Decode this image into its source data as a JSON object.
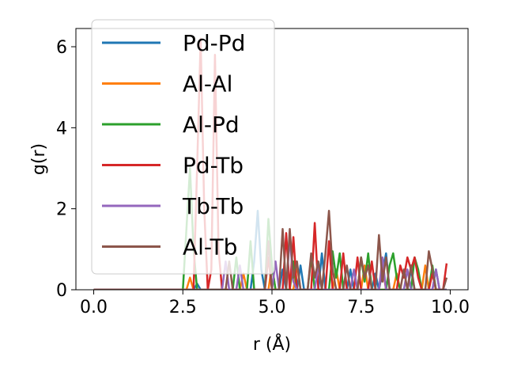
{
  "chart_data": {
    "type": "line",
    "title": "",
    "xlabel": "r (Å)",
    "ylabel": "g(r)",
    "xlim": [
      -0.5,
      10.5
    ],
    "ylim": [
      0,
      6.45
    ],
    "xticks": [
      0.0,
      2.5,
      5.0,
      7.5,
      10.0
    ],
    "xtick_labels": [
      "0.0",
      "2.5",
      "5.0",
      "7.5",
      "10.0"
    ],
    "yticks": [
      0,
      2,
      4,
      6
    ],
    "ytick_labels": [
      "0",
      "2",
      "4",
      "6"
    ],
    "grid": false,
    "legend_location": "upper-left",
    "series": [
      {
        "name": "Pd-Pd",
        "color": "#1f77b4",
        "points": [
          [
            0,
            0
          ],
          [
            2.5,
            0
          ],
          [
            2.8,
            0
          ],
          [
            2.9,
            0.15
          ],
          [
            3.0,
            0
          ],
          [
            4.4,
            0
          ],
          [
            4.5,
            0.7
          ],
          [
            4.6,
            1.95
          ],
          [
            4.7,
            0.5
          ],
          [
            4.8,
            0
          ],
          [
            5.2,
            0
          ],
          [
            5.3,
            0.5
          ],
          [
            5.4,
            0
          ],
          [
            5.7,
            0
          ],
          [
            5.8,
            0.6
          ],
          [
            5.9,
            0
          ],
          [
            6.3,
            0
          ],
          [
            6.4,
            0.9
          ],
          [
            6.5,
            0
          ],
          [
            7.1,
            0
          ],
          [
            7.2,
            0.5
          ],
          [
            7.3,
            0
          ],
          [
            7.8,
            0
          ],
          [
            7.9,
            0.4
          ],
          [
            8.0,
            0
          ],
          [
            8.2,
            0.9
          ],
          [
            8.3,
            0
          ],
          [
            8.8,
            0
          ],
          [
            8.9,
            0.5
          ],
          [
            9.0,
            0
          ],
          [
            9.5,
            0
          ],
          [
            9.6,
            0.5
          ],
          [
            9.7,
            0
          ],
          [
            9.9,
            0
          ]
        ]
      },
      {
        "name": "Al-Al",
        "color": "#ff7f0e",
        "points": [
          [
            0,
            0
          ],
          [
            2.6,
            0
          ],
          [
            2.7,
            0.3
          ],
          [
            2.8,
            0
          ],
          [
            4.1,
            0
          ],
          [
            4.2,
            0.4
          ],
          [
            4.3,
            0
          ],
          [
            4.9,
            0
          ],
          [
            5.0,
            0.6
          ],
          [
            5.1,
            0
          ],
          [
            5.6,
            0
          ],
          [
            5.7,
            0.6
          ],
          [
            5.8,
            0
          ],
          [
            6.7,
            0
          ],
          [
            6.8,
            0.5
          ],
          [
            6.9,
            0
          ],
          [
            7.5,
            0
          ],
          [
            7.6,
            0.6
          ],
          [
            7.7,
            0
          ],
          [
            8.4,
            0
          ],
          [
            8.5,
            0.4
          ],
          [
            8.6,
            0
          ],
          [
            9.2,
            0
          ],
          [
            9.3,
            0.6
          ],
          [
            9.4,
            0
          ],
          [
            9.9,
            0
          ]
        ]
      },
      {
        "name": "Al-Pd",
        "color": "#2ca02c",
        "points": [
          [
            0,
            0
          ],
          [
            2.5,
            0
          ],
          [
            2.6,
            1.5
          ],
          [
            2.7,
            3.0
          ],
          [
            2.8,
            1.0
          ],
          [
            2.9,
            0
          ],
          [
            3.9,
            0
          ],
          [
            4.0,
            0.8
          ],
          [
            4.1,
            0
          ],
          [
            4.3,
            0
          ],
          [
            4.4,
            1.2
          ],
          [
            4.5,
            0
          ],
          [
            4.8,
            0
          ],
          [
            4.9,
            1.75
          ],
          [
            5.0,
            0.6
          ],
          [
            5.1,
            0
          ],
          [
            5.5,
            0
          ],
          [
            5.6,
            0.7
          ],
          [
            5.7,
            0
          ],
          [
            6.0,
            0
          ],
          [
            6.1,
            0.8
          ],
          [
            6.2,
            0
          ],
          [
            6.6,
            0
          ],
          [
            6.7,
            0.95
          ],
          [
            6.8,
            0.3
          ],
          [
            6.9,
            0.9
          ],
          [
            7.0,
            0
          ],
          [
            7.4,
            0
          ],
          [
            7.5,
            0.8
          ],
          [
            7.6,
            0.2
          ],
          [
            7.7,
            0.9
          ],
          [
            7.8,
            0
          ],
          [
            8.2,
            0
          ],
          [
            8.3,
            0.6
          ],
          [
            8.4,
            0.9
          ],
          [
            8.5,
            0.3
          ],
          [
            8.6,
            0
          ],
          [
            8.9,
            0
          ],
          [
            9.0,
            0.8
          ],
          [
            9.1,
            0.5
          ],
          [
            9.2,
            0
          ],
          [
            9.4,
            0
          ],
          [
            9.5,
            0.6
          ],
          [
            9.6,
            0
          ],
          [
            9.9,
            0
          ]
        ]
      },
      {
        "name": "Pd-Tb",
        "color": "#d62728",
        "points": [
          [
            0,
            0
          ],
          [
            2.8,
            0
          ],
          [
            2.9,
            3.0
          ],
          [
            3.0,
            6.2
          ],
          [
            3.1,
            2.0
          ],
          [
            3.2,
            0
          ],
          [
            3.3,
            0.5
          ],
          [
            3.4,
            5.8
          ],
          [
            3.5,
            1.0
          ],
          [
            3.6,
            0
          ],
          [
            4.8,
            0
          ],
          [
            4.9,
            0.8
          ],
          [
            5.0,
            0
          ],
          [
            5.3,
            0
          ],
          [
            5.4,
            1.4
          ],
          [
            5.5,
            0
          ],
          [
            5.6,
            1.3
          ],
          [
            5.7,
            0
          ],
          [
            6.1,
            0
          ],
          [
            6.2,
            1.65
          ],
          [
            6.3,
            0
          ],
          [
            6.5,
            0
          ],
          [
            6.6,
            1.2
          ],
          [
            6.7,
            0
          ],
          [
            6.9,
            0
          ],
          [
            7.0,
            0.9
          ],
          [
            7.1,
            0
          ],
          [
            7.3,
            0
          ],
          [
            7.4,
            0.8
          ],
          [
            7.5,
            0
          ],
          [
            7.7,
            0
          ],
          [
            7.8,
            0.7
          ],
          [
            7.9,
            0
          ],
          [
            8.0,
            0
          ],
          [
            8.1,
            0.6
          ],
          [
            8.2,
            0
          ],
          [
            8.5,
            0
          ],
          [
            8.6,
            0.6
          ],
          [
            8.7,
            0.3
          ],
          [
            8.8,
            0.8
          ],
          [
            8.9,
            0.5
          ],
          [
            9.0,
            0.8
          ],
          [
            9.1,
            0.3
          ],
          [
            9.2,
            0
          ],
          [
            9.4,
            0
          ],
          [
            9.5,
            0.4
          ],
          [
            9.6,
            0
          ],
          [
            9.8,
            0
          ],
          [
            9.9,
            0.65
          ]
        ]
      },
      {
        "name": "Tb-Tb",
        "color": "#9467bd",
        "points": [
          [
            0,
            0
          ],
          [
            3.6,
            0
          ],
          [
            3.7,
            0.7
          ],
          [
            3.8,
            0
          ],
          [
            4.0,
            0
          ],
          [
            4.1,
            0.6
          ],
          [
            4.2,
            0
          ],
          [
            5.0,
            0
          ],
          [
            5.1,
            0.7
          ],
          [
            5.2,
            0
          ],
          [
            5.4,
            0
          ],
          [
            5.5,
            1.3
          ],
          [
            5.6,
            0.2
          ],
          [
            5.7,
            0
          ],
          [
            6.2,
            0
          ],
          [
            6.3,
            0.6
          ],
          [
            6.4,
            0
          ],
          [
            7.2,
            0
          ],
          [
            7.3,
            0.5
          ],
          [
            7.4,
            0
          ],
          [
            8.0,
            0
          ],
          [
            8.1,
            0.8
          ],
          [
            8.2,
            0
          ],
          [
            8.7,
            0
          ],
          [
            8.8,
            0.5
          ],
          [
            8.9,
            0
          ],
          [
            9.5,
            0
          ],
          [
            9.6,
            0.5
          ],
          [
            9.7,
            0
          ],
          [
            9.9,
            0
          ]
        ]
      },
      {
        "name": "Al-Tb",
        "color": "#8c564b",
        "points": [
          [
            0,
            0
          ],
          [
            3.7,
            0
          ],
          [
            3.8,
            0.7
          ],
          [
            3.9,
            0
          ],
          [
            4.8,
            0
          ],
          [
            4.9,
            1.2
          ],
          [
            5.0,
            0
          ],
          [
            5.2,
            0
          ],
          [
            5.3,
            1.5
          ],
          [
            5.4,
            0
          ],
          [
            5.5,
            1.5
          ],
          [
            5.6,
            0.3
          ],
          [
            5.7,
            0.7
          ],
          [
            5.8,
            0
          ],
          [
            6.0,
            0
          ],
          [
            6.1,
            0.9
          ],
          [
            6.2,
            0.3
          ],
          [
            6.3,
            0.7
          ],
          [
            6.4,
            0
          ],
          [
            6.5,
            0.9
          ],
          [
            6.6,
            1.95
          ],
          [
            6.7,
            0.5
          ],
          [
            6.8,
            0
          ],
          [
            7.0,
            0
          ],
          [
            7.1,
            0.6
          ],
          [
            7.2,
            0
          ],
          [
            7.4,
            0
          ],
          [
            7.5,
            0.8
          ],
          [
            7.6,
            0.3
          ],
          [
            7.7,
            0.6
          ],
          [
            7.8,
            0
          ],
          [
            7.9,
            0
          ],
          [
            8.0,
            1.35
          ],
          [
            8.1,
            0.2
          ],
          [
            8.2,
            0.8
          ],
          [
            8.3,
            0
          ],
          [
            8.6,
            0
          ],
          [
            8.7,
            0.5
          ],
          [
            8.8,
            0
          ],
          [
            8.9,
            0.6
          ],
          [
            9.0,
            0
          ],
          [
            9.3,
            0
          ],
          [
            9.4,
            0.95
          ],
          [
            9.5,
            0.5
          ],
          [
            9.6,
            0
          ],
          [
            9.8,
            0
          ],
          [
            9.9,
            0.3
          ]
        ]
      }
    ]
  }
}
